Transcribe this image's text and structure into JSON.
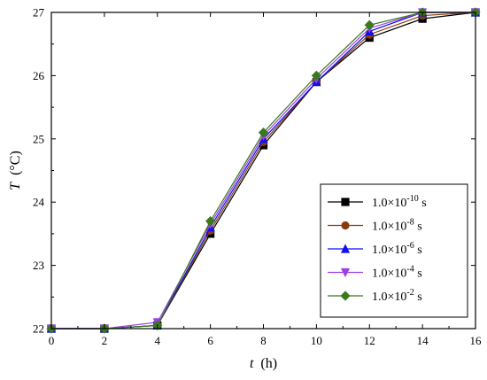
{
  "chart_data": {
    "type": "line",
    "xlabel": {
      "var": "t",
      "unit": "(h)"
    },
    "ylabel": {
      "var": "T",
      "unit": "(°C)"
    },
    "xlim": [
      0,
      16
    ],
    "ylim": [
      22,
      27
    ],
    "x_ticks": [
      "0",
      "2",
      "4",
      "6",
      "8",
      "10",
      "12",
      "14",
      "16"
    ],
    "y_ticks": [
      "22",
      "23",
      "24",
      "25",
      "26",
      "27"
    ],
    "grid": false,
    "legend_position": "bottom-right",
    "series": [
      {
        "name": {
          "base": "1.0×10",
          "exp": "-10",
          "unit": " s"
        },
        "color": "#000000",
        "marker": "square",
        "x": [
          0,
          2,
          4,
          6,
          8,
          10,
          12,
          14,
          16
        ],
        "values": [
          22.0,
          22.0,
          22.05,
          23.5,
          24.9,
          25.9,
          26.6,
          26.9,
          27.0
        ]
      },
      {
        "name": {
          "base": "1.0×10",
          "exp": "-8",
          "unit": " s"
        },
        "color": "#8b3a0e",
        "marker": "circle",
        "x": [
          0,
          2,
          4,
          6,
          8,
          10,
          12,
          14,
          16
        ],
        "values": [
          22.0,
          22.0,
          22.05,
          23.55,
          24.95,
          25.9,
          26.65,
          26.95,
          27.0
        ]
      },
      {
        "name": {
          "base": "1.0×10",
          "exp": "-6",
          "unit": " s"
        },
        "color": "#1010ee",
        "marker": "triangle-up",
        "x": [
          0,
          2,
          4,
          6,
          8,
          10,
          12,
          14,
          16
        ],
        "values": [
          22.0,
          22.0,
          22.05,
          23.6,
          25.0,
          25.9,
          26.7,
          27.0,
          27.0
        ]
      },
      {
        "name": {
          "base": "1.0×10",
          "exp": "-4",
          "unit": " s"
        },
        "color": "#9b40e8",
        "marker": "triangle-down",
        "x": [
          0,
          2,
          4,
          6,
          8,
          10,
          12,
          14,
          16
        ],
        "values": [
          22.0,
          22.0,
          22.1,
          23.65,
          25.05,
          25.95,
          26.75,
          27.0,
          27.0
        ]
      },
      {
        "name": {
          "base": "1.0×10",
          "exp": "-2",
          "unit": " s"
        },
        "color": "#3a7a1a",
        "marker": "diamond",
        "x": [
          0,
          2,
          4,
          6,
          8,
          10,
          12,
          14,
          16
        ],
        "values": [
          22.0,
          22.0,
          22.05,
          23.7,
          25.1,
          26.0,
          26.8,
          27.0,
          27.0
        ]
      }
    ]
  }
}
